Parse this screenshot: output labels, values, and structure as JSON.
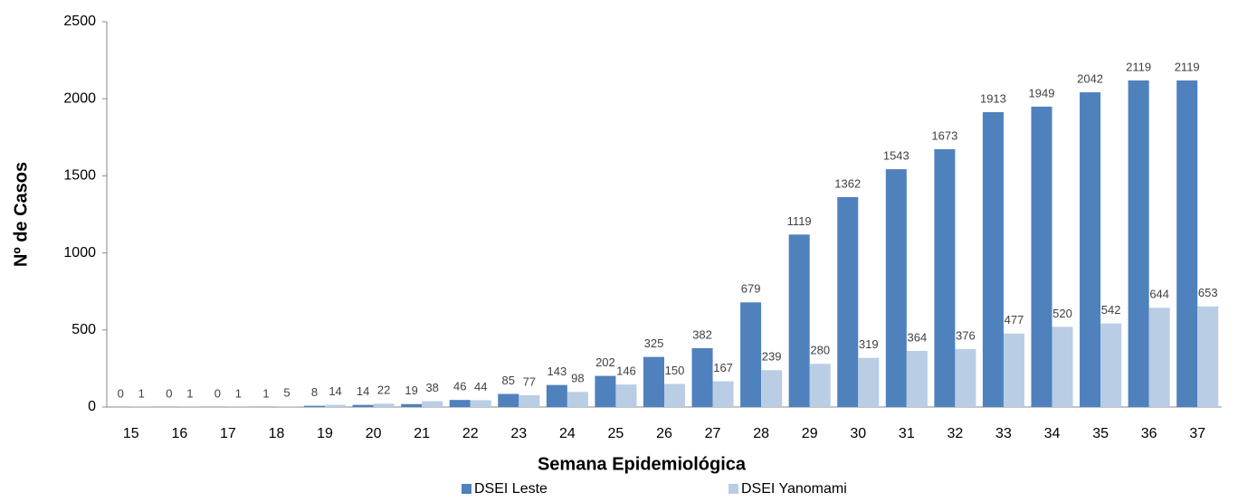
{
  "chart_data": {
    "type": "bar",
    "x_label": "Semana Epidemiológica",
    "y_label": "Nº de Casos",
    "categories": [
      "15",
      "16",
      "17",
      "18",
      "19",
      "20",
      "21",
      "22",
      "23",
      "24",
      "25",
      "26",
      "27",
      "28",
      "29",
      "30",
      "31",
      "32",
      "33",
      "34",
      "35",
      "36",
      "37"
    ],
    "series": [
      {
        "name": "DSEI Leste",
        "color": "#4f81bd",
        "values": [
          0,
          0,
          0,
          1,
          8,
          14,
          19,
          46,
          85,
          143,
          202,
          325,
          382,
          679,
          1119,
          1362,
          1543,
          1673,
          1913,
          1949,
          2042,
          2119,
          2119
        ]
      },
      {
        "name": "DSEI Yanomami",
        "color": "#b9cde5",
        "values": [
          1,
          1,
          1,
          5,
          14,
          22,
          38,
          44,
          77,
          98,
          146,
          150,
          167,
          239,
          280,
          319,
          364,
          376,
          477,
          520,
          542,
          644,
          653
        ]
      }
    ],
    "ylim": [
      0,
      2500
    ],
    "yticks": [
      0,
      500,
      1000,
      1500,
      2000,
      2500
    ],
    "legend": "bottom"
  }
}
